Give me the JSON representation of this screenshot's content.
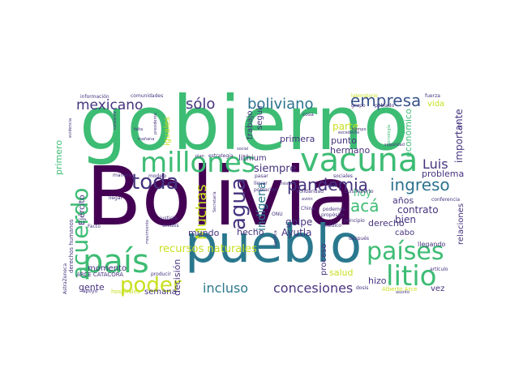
{
  "words": [
    {
      "text": "Bolivia",
      "color": "#440154"
    },
    {
      "text": "gobierno",
      "color": "#3dbc74"
    },
    {
      "text": "pueblo",
      "color": "#2a788e"
    },
    {
      "text": "vacuna",
      "color": "#3dbc74"
    },
    {
      "text": "país",
      "color": "#3dbc74"
    },
    {
      "text": "millones",
      "color": "#3dbc74"
    },
    {
      "text": "litio",
      "color": "#3dbc74"
    },
    {
      "text": "países",
      "color": "#3dbc74"
    },
    {
      "text": "toda",
      "color": "#46337e"
    },
    {
      "text": "acuerdo",
      "color": "#3dbc74"
    },
    {
      "text": "poder",
      "color": "#c8e020"
    },
    {
      "text": "agua",
      "color": "#46337e"
    },
    {
      "text": "pandemia",
      "color": "#46337e"
    },
    {
      "text": "ingreso",
      "color": "#2c728e"
    },
    {
      "text": "empresa",
      "color": "#3a548c"
    },
    {
      "text": "boliviano",
      "color": "#2c728e"
    },
    {
      "text": "mexicano",
      "color": "#46337e"
    },
    {
      "text": "sólo",
      "color": "#46337e"
    },
    {
      "text": "concesiones",
      "color": "#46337e"
    },
    {
      "text": "incluso",
      "color": "#2a788e"
    },
    {
      "text": "Muchas",
      "color": "#c8e020"
    },
    {
      "text": "acá",
      "color": "#3dbc74"
    },
    {
      "text": "Luis",
      "color": "#46337e"
    },
    {
      "text": "recursos naturales",
      "color": "#c8e020"
    },
    {
      "text": "indígena",
      "color": "#2a788e"
    },
    {
      "text": "siempre",
      "color": "#46337e"
    },
    {
      "text": "primera",
      "color": "#46337e"
    },
    {
      "text": "punto",
      "color": "#46337e"
    },
    {
      "text": "hermano",
      "color": "#46337e"
    },
    {
      "text": "parte",
      "color": "#c8e020"
    },
    {
      "text": "lithium",
      "color": "#46337e"
    },
    {
      "text": "económico",
      "color": "#3dbc74"
    },
    {
      "text": "importante",
      "color": "#46337e"
    },
    {
      "text": "problema",
      "color": "#46337e"
    },
    {
      "text": "hoy",
      "color": "#3dbc74"
    },
    {
      "text": "contrato",
      "color": "#46337e"
    },
    {
      "text": "años",
      "color": "#46337e"
    },
    {
      "text": "bien",
      "color": "#46337e"
    },
    {
      "text": "golpe",
      "color": "#46337e"
    },
    {
      "text": "Ayutla",
      "color": "#46337e"
    },
    {
      "text": "hecho",
      "color": "#46337e"
    },
    {
      "text": "mundo",
      "color": "#46337e"
    },
    {
      "text": "momento",
      "color": "#46337e"
    },
    {
      "text": "decisión",
      "color": "#46337e"
    },
    {
      "text": "gente",
      "color": "#46337e"
    },
    {
      "text": "semana",
      "color": "#46337e"
    },
    {
      "text": "salud",
      "color": "#c8e020"
    },
    {
      "text": "derecho",
      "color": "#46337e"
    },
    {
      "text": "cabo",
      "color": "#46337e"
    },
    {
      "text": "hizo",
      "color": "#46337e"
    },
    {
      "text": "vez",
      "color": "#46337e"
    },
    {
      "text": "relaciones",
      "color": "#46337e"
    },
    {
      "text": "proceso",
      "color": "#46337e"
    },
    {
      "text": "Ejército",
      "color": "#46337e"
    },
    {
      "text": "iguales",
      "color": "#c8e020"
    },
    {
      "text": "trabajo",
      "color": "#46337e"
    },
    {
      "text": "seguir",
      "color": "#46337e"
    },
    {
      "text": "vida",
      "color": "#c8e020"
    },
    {
      "text": "primero",
      "color": "#3dbc74"
    },
    {
      "text": "llegando",
      "color": "#46337e"
    },
    {
      "text": "después",
      "color": "#46337e"
    },
    {
      "text": "derechos humanos",
      "color": "#46337e"
    },
    {
      "text": "ARCE CATACORA",
      "color": "#46337e"
    },
    {
      "text": "Alberto Arce",
      "color": "#c8e020"
    },
    {
      "text": "hospitales",
      "color": "#c8e020"
    },
    {
      "text": "apoyo",
      "color": "#46337e"
    },
    {
      "text": "producir",
      "color": "#46337e"
    },
    {
      "text": "dosis",
      "color": "#46337e"
    },
    {
      "text": "artículo",
      "color": "#46337e"
    },
    {
      "text": "AstraZeneca",
      "color": "#46337e"
    },
    {
      "text": "información",
      "color": "#46337e"
    },
    {
      "text": "comunidades",
      "color": "#46337e"
    },
    {
      "text": "laboratorio",
      "color": "#c8e020"
    },
    {
      "text": "fuerza",
      "color": "#46337e"
    },
    {
      "text": "grupo",
      "color": "#46337e"
    },
    {
      "text": "poblado",
      "color": "#46337e"
    },
    {
      "text": "excedente",
      "color": "#46337e"
    },
    {
      "text": "sino",
      "color": "#46337e"
    },
    {
      "text": "falta",
      "color": "#46337e"
    },
    {
      "text": "mañana",
      "color": "#46337e"
    },
    {
      "text": "convenio",
      "color": "#46337e"
    },
    {
      "text": "estrategia",
      "color": "#46337e"
    },
    {
      "text": "plan",
      "color": "#46337e"
    },
    {
      "text": "social",
      "color": "#46337e"
    },
    {
      "text": "modelo",
      "color": "#46337e"
    },
    {
      "text": "manera",
      "color": "#46337e"
    },
    {
      "text": "llevar",
      "color": "#46337e"
    },
    {
      "text": "pasar",
      "color": "#46337e"
    },
    {
      "text": "población",
      "color": "#46337e"
    },
    {
      "text": "solidaridad",
      "color": "#46337e"
    },
    {
      "text": "Luis Alberto",
      "color": "#46337e"
    },
    {
      "text": "sociales",
      "color": "#46337e"
    },
    {
      "text": "llegar",
      "color": "#46337e"
    },
    {
      "text": "conferencia",
      "color": "#46337e"
    },
    {
      "text": "justicia",
      "color": "#46337e"
    },
    {
      "text": "Unidos",
      "color": "#46337e"
    },
    {
      "text": "podemos",
      "color": "#46337e"
    },
    {
      "text": "propósito",
      "color": "#46337e"
    },
    {
      "text": "médico",
      "color": "#46337e"
    },
    {
      "text": "principio",
      "color": "#46337e"
    },
    {
      "text": "asunto",
      "color": "#46337e"
    },
    {
      "text": "China",
      "color": "#46337e"
    },
    {
      "text": "ONU",
      "color": "#46337e"
    },
    {
      "text": "seguridad",
      "color": "#46337e"
    },
    {
      "text": "tecnología",
      "color": "#3dbc74"
    },
    {
      "text": "tiempo",
      "color": "#46337e"
    },
    {
      "text": "Secretaría",
      "color": "#46337e"
    },
    {
      "text": "cosa",
      "color": "#46337e"
    },
    {
      "text": "mismo",
      "color": "#46337e"
    },
    {
      "text": "significa",
      "color": "#46337e"
    },
    {
      "text": "movimiento",
      "color": "#46337e"
    },
    {
      "text": "Facto",
      "color": "#46337e"
    },
    {
      "text": "evidencia",
      "color": "#46337e"
    },
    {
      "text": "presidente",
      "color": "#46337e"
    },
    {
      "text": "salir",
      "color": "#46337e"
    },
    {
      "text": "avión",
      "color": "#46337e"
    }
  ]
}
